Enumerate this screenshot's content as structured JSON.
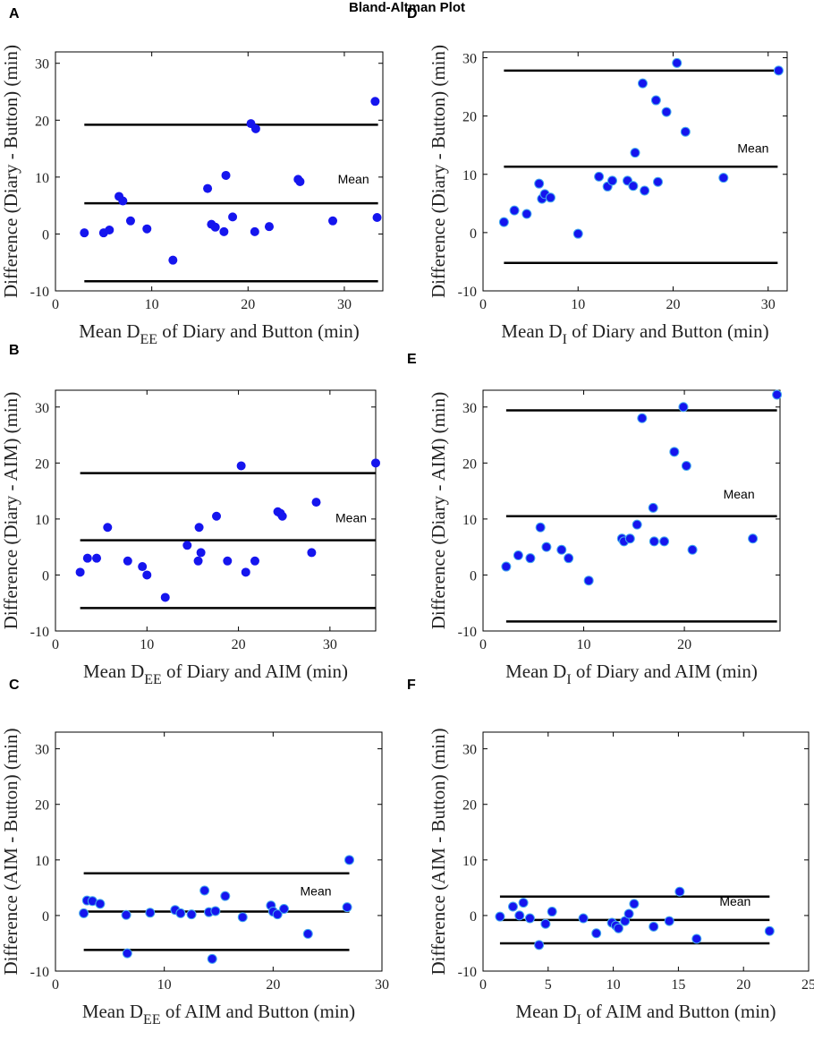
{
  "figure_title": "Bland-Altman Plot",
  "chart_data": [
    {
      "panel": "A",
      "type": "scatter",
      "title": "",
      "xlabel_main": "Mean D",
      "xlabel_sub": "EE",
      "xlabel_rest": " of Diary and Button (min)",
      "ylabel": "Difference (Diary - Button) (min)",
      "xlim": [
        0,
        34
      ],
      "ylim": [
        -10,
        32
      ],
      "xticks": [
        0,
        10,
        20,
        30
      ],
      "yticks": [
        -10,
        0,
        10,
        20,
        30
      ],
      "mean_label": "Mean",
      "hlines": {
        "upper": 19.2,
        "mean": 5.4,
        "lower": -8.3
      },
      "line_xrange": [
        3,
        33.5
      ],
      "x": [
        3.0,
        5.0,
        5.6,
        6.6,
        7.0,
        7.8,
        9.5,
        12.2,
        15.8,
        16.2,
        16.6,
        17.5,
        17.7,
        18.4,
        20.3,
        20.7,
        20.8,
        22.2,
        25.2,
        25.4,
        28.8,
        33.2,
        33.4
      ],
      "y": [
        0.2,
        0.2,
        0.7,
        6.6,
        5.8,
        2.3,
        0.9,
        -4.6,
        8.0,
        1.7,
        1.2,
        0.4,
        10.3,
        3.0,
        19.4,
        0.4,
        18.5,
        1.3,
        9.6,
        9.2,
        2.3,
        23.3,
        2.9
      ]
    },
    {
      "panel": "D",
      "type": "scatter",
      "title": "",
      "xlabel_main": "Mean D",
      "xlabel_sub": "I",
      "xlabel_rest": " of Diary and Button (min)",
      "ylabel": "Difference (Diary - Button) (min)",
      "xlim": [
        0,
        32
      ],
      "ylim": [
        -10,
        31
      ],
      "xticks": [
        0,
        10,
        20,
        30
      ],
      "yticks": [
        -10,
        0,
        10,
        20,
        30
      ],
      "mean_label": "Mean",
      "hlines": {
        "upper": 27.8,
        "mean": 11.3,
        "lower": -5.2
      },
      "line_xrange": [
        2.2,
        31
      ],
      "x": [
        2.2,
        3.3,
        4.6,
        5.9,
        6.2,
        6.5,
        7.1,
        10.0,
        12.2,
        13.1,
        13.6,
        15.2,
        15.8,
        16.0,
        16.8,
        17.0,
        18.2,
        18.4,
        19.3,
        20.4,
        21.3,
        25.3,
        31.1
      ],
      "y": [
        1.8,
        3.8,
        3.2,
        8.4,
        5.8,
        6.6,
        6.0,
        -0.2,
        9.6,
        7.9,
        8.9,
        8.9,
        8.0,
        13.7,
        25.6,
        7.2,
        22.7,
        8.7,
        20.7,
        29.1,
        17.3,
        9.4,
        27.8
      ]
    },
    {
      "panel": "B",
      "type": "scatter",
      "title": "",
      "xlabel_main": "Mean D",
      "xlabel_sub": "EE",
      "xlabel_rest": " of Diary and AIM (min)",
      "ylabel": "Difference (Diary - AIM) (min)",
      "xlim": [
        0,
        35
      ],
      "ylim": [
        -10,
        33
      ],
      "xticks": [
        0,
        10,
        20,
        30
      ],
      "yticks": [
        -10,
        0,
        10,
        20,
        30
      ],
      "mean_label": "Mean",
      "hlines": {
        "upper": 18.2,
        "mean": 6.2,
        "lower": -5.9
      },
      "line_xrange": [
        2.7,
        35
      ],
      "x": [
        2.7,
        3.5,
        4.5,
        5.7,
        7.9,
        9.5,
        10.0,
        12.0,
        14.4,
        15.6,
        15.7,
        15.9,
        17.6,
        18.8,
        20.3,
        20.8,
        21.8,
        24.3,
        24.6,
        24.8,
        28.0,
        28.5,
        35.0
      ],
      "y": [
        0.5,
        3.0,
        3.0,
        8.5,
        2.5,
        1.5,
        0.0,
        -4.0,
        5.3,
        2.5,
        8.5,
        4.0,
        10.5,
        2.5,
        19.5,
        0.5,
        2.5,
        11.3,
        11.0,
        10.5,
        4.0,
        13.0,
        20.0
      ]
    },
    {
      "panel": "E",
      "type": "scatter",
      "title": "",
      "xlabel_main": "Mean D",
      "xlabel_sub": "I",
      "xlabel_rest": " of Diary and AIM (min)",
      "ylabel": "Difference (Diary - AIM) (min)",
      "xlim": [
        0,
        29.5
      ],
      "ylim": [
        -10,
        33
      ],
      "xticks": [
        0,
        10,
        20
      ],
      "yticks": [
        -10,
        0,
        10,
        20,
        30
      ],
      "mean_label": "Mean",
      "hlines": {
        "upper": 29.4,
        "mean": 10.5,
        "lower": -8.3
      },
      "line_xrange": [
        2.3,
        29.2
      ],
      "x": [
        2.3,
        3.5,
        4.7,
        5.7,
        6.3,
        7.8,
        8.5,
        10.5,
        13.8,
        14.0,
        14.6,
        15.3,
        15.8,
        16.9,
        17.0,
        18.0,
        19.0,
        19.9,
        20.2,
        20.8,
        26.8,
        29.2
      ],
      "y": [
        1.5,
        3.5,
        3.0,
        8.5,
        5.0,
        4.5,
        3.0,
        -1.0,
        6.5,
        6.0,
        6.5,
        9.0,
        28.0,
        12.0,
        6.0,
        6.0,
        22.0,
        30.0,
        19.5,
        4.5,
        6.5,
        32.2
      ]
    },
    {
      "panel": "C",
      "type": "scatter",
      "title": "",
      "xlabel_main": "Mean D",
      "xlabel_sub": "EE",
      "xlabel_rest": " of AIM and Button (min)",
      "ylabel": "Difference (AIM - Button) (min)",
      "xlim": [
        0,
        30
      ],
      "ylim": [
        -10,
        33
      ],
      "xticks": [
        0,
        10,
        20,
        30
      ],
      "yticks": [
        -10,
        0,
        10,
        20,
        30
      ],
      "mean_label": "Mean",
      "hlines": {
        "upper": 7.6,
        "mean": 0.7,
        "lower": -6.2
      },
      "line_xrange": [
        2.6,
        27.0
      ],
      "x": [
        2.6,
        2.9,
        3.4,
        4.1,
        6.5,
        6.6,
        8.7,
        11.0,
        11.5,
        12.5,
        13.7,
        14.1,
        14.4,
        14.7,
        15.6,
        17.2,
        19.8,
        20.0,
        20.4,
        21.0,
        23.2,
        26.8,
        27.0
      ],
      "y": [
        0.4,
        2.7,
        2.6,
        2.1,
        0.1,
        -6.8,
        0.5,
        1.0,
        0.4,
        0.2,
        4.5,
        0.6,
        -7.8,
        0.8,
        3.5,
        -0.3,
        1.8,
        0.7,
        0.2,
        1.2,
        -3.3,
        1.5,
        10.0
      ]
    },
    {
      "panel": "F",
      "type": "scatter",
      "title": "",
      "xlabel_main": "Mean D",
      "xlabel_sub": "I",
      "xlabel_rest": " of AIM and Button (min)",
      "ylabel": "Difference (AIM - Button) (min)",
      "xlim": [
        0,
        25
      ],
      "ylim": [
        -10,
        33
      ],
      "xticks": [
        0,
        5,
        10,
        15,
        20,
        25
      ],
      "yticks": [
        -10,
        0,
        10,
        20,
        30
      ],
      "mean_label": "Mean",
      "hlines": {
        "upper": 3.4,
        "mean": -0.8,
        "lower": -5.0
      },
      "line_xrange": [
        1.3,
        22.0
      ],
      "x": [
        1.3,
        2.3,
        2.8,
        3.1,
        3.6,
        4.3,
        4.8,
        5.3,
        7.7,
        8.7,
        9.9,
        10.2,
        10.4,
        10.9,
        11.2,
        11.6,
        13.1,
        14.3,
        15.1,
        16.4,
        22.0
      ],
      "y": [
        -0.2,
        1.6,
        0.0,
        2.3,
        -0.5,
        -5.3,
        -1.5,
        0.7,
        -0.5,
        -3.2,
        -1.3,
        -1.8,
        -2.3,
        -1.0,
        0.3,
        2.1,
        -2.0,
        -1.0,
        4.3,
        -4.2,
        -2.8
      ]
    }
  ]
}
